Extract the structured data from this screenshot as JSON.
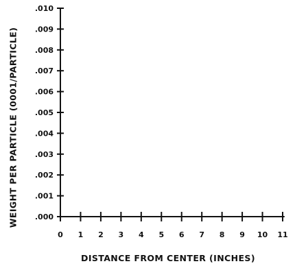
{
  "chart_data": {
    "type": "line",
    "title": "",
    "xlabel": "DISTANCE FROM CENTER (INCHES)",
    "ylabel": "WEIGHT PER PARTICLE (0001/PARTICLE)",
    "x_ticks": [
      "0",
      "1",
      "2",
      "3",
      "4",
      "5",
      "6",
      "7",
      "8",
      "9",
      "10",
      "11"
    ],
    "y_ticks": [
      ".000",
      ".001",
      ".002",
      ".003",
      ".004",
      ".005",
      ".006",
      ".007",
      ".008",
      ".009",
      ".010"
    ],
    "xlim": [
      0,
      11
    ],
    "ylim": [
      0,
      0.01
    ],
    "grid": false,
    "series": []
  }
}
